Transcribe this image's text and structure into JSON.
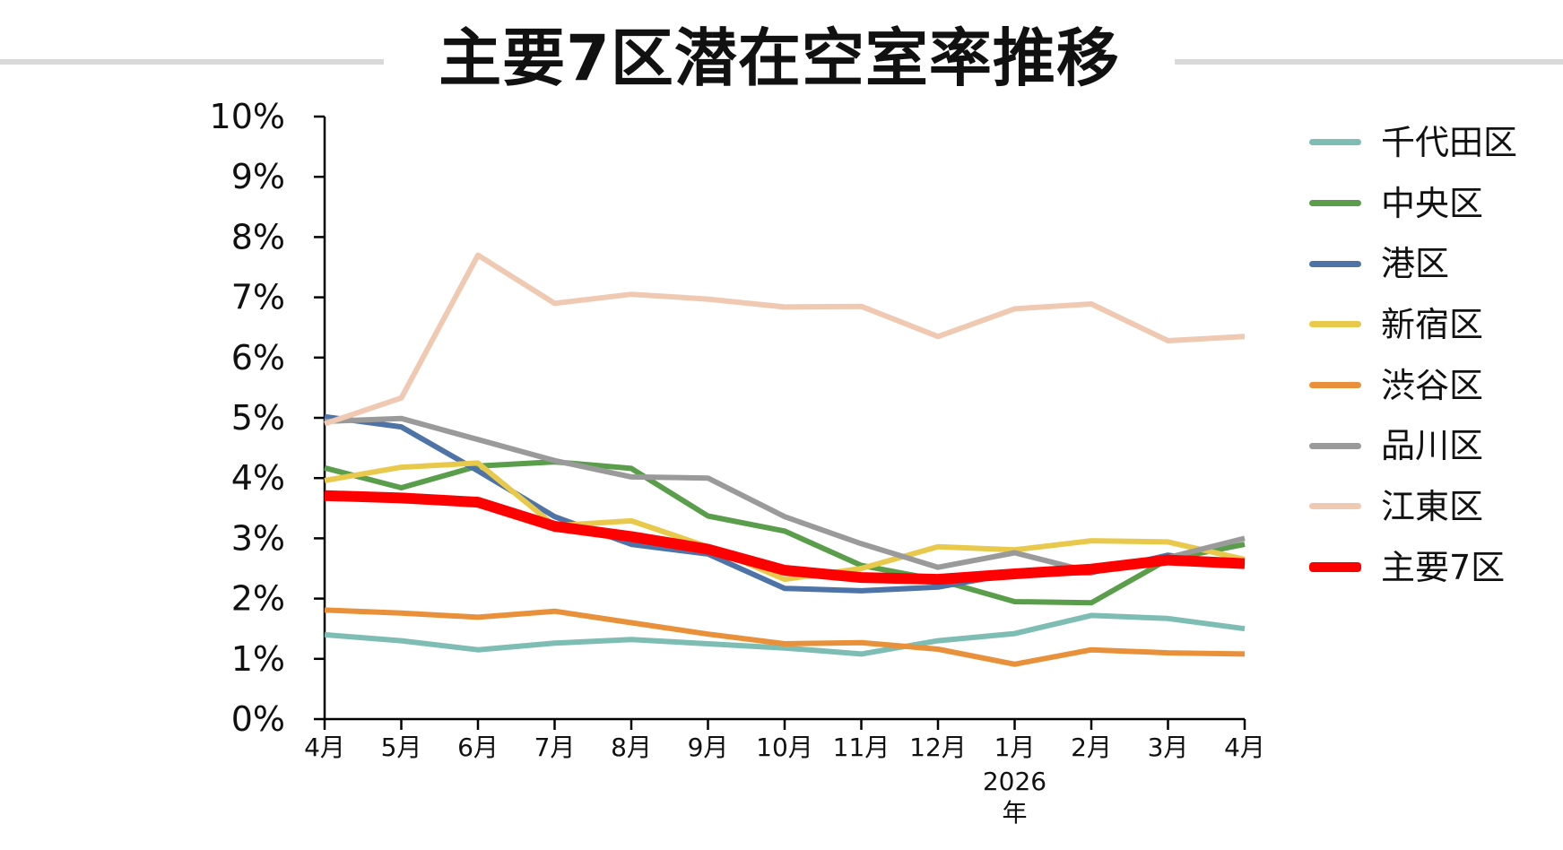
{
  "chart_data": {
    "type": "line",
    "title": "主要7区潜在空室率推移",
    "xlabel": "",
    "ylabel": "",
    "categories": [
      "4月",
      "5月",
      "6月",
      "7月",
      "8月",
      "9月",
      "10月",
      "11月",
      "12月",
      "1月",
      "2月",
      "3月",
      "4月"
    ],
    "year_label": "2026年",
    "ylim": [
      0,
      10
    ],
    "yticks": [
      "0%",
      "1%",
      "2%",
      "3%",
      "4%",
      "5%",
      "6%",
      "7%",
      "8%",
      "9%",
      "10%"
    ],
    "legend_position": "right",
    "grid": false,
    "series": [
      {
        "name": "千代田区",
        "color": "#7ebdb3",
        "width": 6,
        "values": [
          1.4,
          1.3,
          1.15,
          1.26,
          1.32,
          1.25,
          1.18,
          1.08,
          1.3,
          1.42,
          1.72,
          1.67,
          1.5
        ]
      },
      {
        "name": "中央区",
        "color": "#5a9e4b",
        "width": 6,
        "values": [
          4.17,
          3.84,
          4.2,
          4.27,
          4.16,
          3.37,
          3.12,
          2.55,
          2.31,
          1.95,
          1.93,
          2.65,
          2.9
        ]
      },
      {
        "name": "港区",
        "color": "#4e73a6",
        "width": 6,
        "values": [
          5.02,
          4.85,
          4.12,
          3.36,
          2.9,
          2.74,
          2.17,
          2.13,
          2.19,
          2.42,
          2.43,
          2.72,
          2.55
        ]
      },
      {
        "name": "新宿区",
        "color": "#e8c94b",
        "width": 6,
        "values": [
          3.96,
          4.18,
          4.25,
          3.21,
          3.29,
          2.86,
          2.32,
          2.5,
          2.86,
          2.81,
          2.96,
          2.94,
          2.65
        ]
      },
      {
        "name": "渋谷区",
        "color": "#e8913a",
        "width": 6,
        "values": [
          1.81,
          1.76,
          1.69,
          1.79,
          1.6,
          1.41,
          1.25,
          1.27,
          1.16,
          0.91,
          1.15,
          1.1,
          1.08
        ]
      },
      {
        "name": "品川区",
        "color": "#9a9a9a",
        "width": 6,
        "values": [
          4.94,
          4.99,
          4.64,
          4.29,
          4.02,
          4.0,
          3.36,
          2.91,
          2.52,
          2.76,
          2.44,
          2.68,
          3.0
        ]
      },
      {
        "name": "江東区",
        "color": "#efc9b1",
        "width": 6,
        "values": [
          4.9,
          5.33,
          7.7,
          6.9,
          7.05,
          6.97,
          6.84,
          6.85,
          6.35,
          6.81,
          6.89,
          6.28,
          6.35
        ]
      },
      {
        "name": "主要7区",
        "color": "#ff0000",
        "width": 12,
        "values": [
          3.71,
          3.67,
          3.6,
          3.2,
          3.03,
          2.82,
          2.47,
          2.35,
          2.32,
          2.41,
          2.49,
          2.64,
          2.58
        ]
      }
    ]
  }
}
